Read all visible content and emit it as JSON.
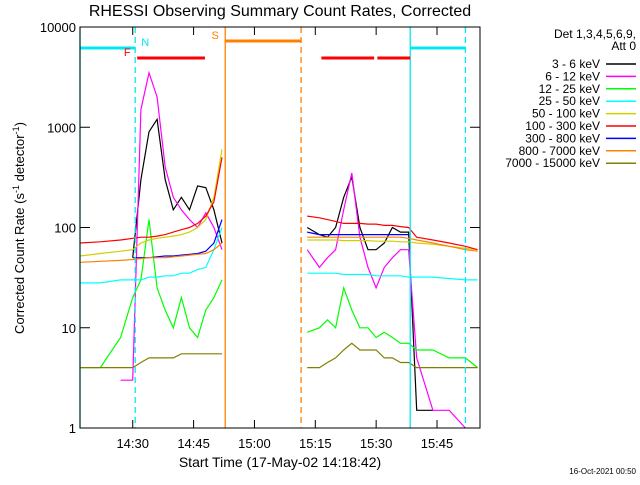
{
  "chart_data": {
    "type": "line",
    "title": "RHESSI Observing Summary Count Rates, Corrected",
    "xlabel": "Start Time (17-May-02 14:18:42)",
    "ylabel_parts": [
      "Corrected Count Rate (s",
      "-1",
      " detector",
      "-1",
      ")"
    ],
    "legend_title": [
      "Det 1,3,4,5,6,9,",
      "Att 0"
    ],
    "footer": "16-Oct-2021 00:50",
    "log_y": true,
    "legend": "right",
    "xlim": [
      857,
      955.6
    ],
    "ylim": [
      1,
      10000
    ],
    "xticks": [
      {
        "value": 870,
        "label": "14:30"
      },
      {
        "value": 885,
        "label": "14:45"
      },
      {
        "value": 900,
        "label": "15:00"
      },
      {
        "value": 915,
        "label": "15:15"
      },
      {
        "value": 930,
        "label": "15:30"
      },
      {
        "value": 945,
        "label": "15:45"
      }
    ],
    "yticks": [
      1,
      10,
      100,
      1000,
      10000
    ],
    "x": [
      857,
      862,
      867,
      870,
      872,
      874,
      876,
      878,
      880,
      882,
      884,
      886,
      888,
      890,
      892,
      900,
      913,
      916,
      918,
      920,
      922,
      924,
      926,
      928,
      930,
      932,
      934,
      936,
      938,
      940,
      944,
      948,
      952,
      955
    ],
    "flags": [
      {
        "label": "N",
        "color": "#00e8f0",
        "spans": [
          [
            857,
            870.6
          ],
          [
            938.4,
            952
          ]
        ]
      },
      {
        "label": "S",
        "color": "#ff8000",
        "spans": [
          [
            892.8,
            911.5
          ]
        ]
      },
      {
        "label": "F",
        "color": "#ff0000",
        "spans": [
          [
            871.1,
            887.8
          ],
          [
            916.5,
            929.5
          ],
          [
            930.3,
            938.4
          ]
        ]
      }
    ],
    "series": [
      {
        "name": "3 - 6 keV",
        "color": "#000000",
        "values": [
          null,
          null,
          null,
          50,
          300,
          900,
          1200,
          300,
          150,
          200,
          150,
          260,
          250,
          150,
          70,
          null,
          100,
          85,
          80,
          100,
          200,
          320,
          100,
          60,
          60,
          70,
          100,
          90,
          90,
          1.5,
          1.5,
          null,
          null,
          null
        ]
      },
      {
        "name": "6 - 12 keV",
        "color": "#ff00ff",
        "values": [
          null,
          null,
          3,
          3,
          1500,
          3500,
          2000,
          400,
          200,
          150,
          120,
          100,
          140,
          100,
          60,
          null,
          60,
          40,
          50,
          60,
          150,
          350,
          80,
          40,
          25,
          40,
          50,
          60,
          60,
          5,
          1.5,
          1.5,
          1,
          null
        ]
      },
      {
        "name": "12 - 25 keV",
        "color": "#00ff00",
        "values": [
          4,
          4,
          8,
          20,
          30,
          120,
          25,
          15,
          10,
          20,
          10,
          8,
          15,
          20,
          30,
          null,
          9,
          10,
          12,
          10,
          25,
          15,
          10,
          10,
          8,
          9,
          8,
          7,
          7,
          6,
          6,
          5,
          5,
          4
        ]
      },
      {
        "name": "25 - 50 keV",
        "color": "#00ffff",
        "values": [
          28,
          28,
          30,
          30,
          30,
          32,
          32,
          33,
          33,
          35,
          35,
          38,
          40,
          60,
          100,
          null,
          35,
          35,
          35,
          35,
          34,
          34,
          34,
          34,
          33,
          33,
          33,
          33,
          32,
          32,
          32,
          31,
          30,
          30
        ]
      },
      {
        "name": "50 - 100 keV",
        "color": "#d0d000",
        "values": [
          52,
          55,
          58,
          60,
          70,
          75,
          78,
          80,
          82,
          85,
          90,
          100,
          120,
          200,
          600,
          null,
          75,
          75,
          75,
          75,
          74,
          74,
          74,
          74,
          73,
          73,
          73,
          72,
          72,
          70,
          68,
          65,
          62,
          60
        ]
      },
      {
        "name": "100 - 300 keV",
        "color": "#ff0000",
        "values": [
          70,
          72,
          75,
          78,
          80,
          80,
          82,
          85,
          90,
          95,
          100,
          110,
          130,
          180,
          500,
          null,
          130,
          125,
          120,
          115,
          110,
          110,
          110,
          108,
          108,
          105,
          105,
          102,
          100,
          80,
          75,
          70,
          65,
          60
        ]
      },
      {
        "name": "300 - 800 keV",
        "color": "#0000ff",
        "values": [
          null,
          null,
          null,
          50,
          50,
          50,
          51,
          52,
          52,
          53,
          54,
          55,
          58,
          70,
          120,
          null,
          90,
          85,
          85,
          85,
          85,
          85,
          85,
          85,
          85,
          85,
          85,
          85,
          85,
          null,
          null,
          null,
          null,
          null
        ]
      },
      {
        "name": "800 - 7000 keV",
        "color": "#ff8000",
        "values": [
          45,
          46,
          47,
          48,
          49,
          50,
          50,
          50,
          51,
          52,
          53,
          54,
          55,
          60,
          70,
          null,
          80,
          80,
          80,
          80,
          80,
          80,
          80,
          80,
          80,
          80,
          80,
          80,
          78,
          75,
          70,
          65,
          60,
          58
        ]
      },
      {
        "name": "7000 - 15000 keV",
        "color": "#808000",
        "values": [
          4,
          4,
          4,
          4,
          4.5,
          5,
          5,
          5,
          5,
          5.5,
          5.5,
          5.5,
          5.5,
          5.5,
          5.5,
          null,
          4,
          4,
          4.5,
          5,
          6,
          7,
          6,
          6,
          6,
          5,
          5,
          4.5,
          4.5,
          4,
          4,
          4,
          4,
          4
        ]
      }
    ]
  }
}
